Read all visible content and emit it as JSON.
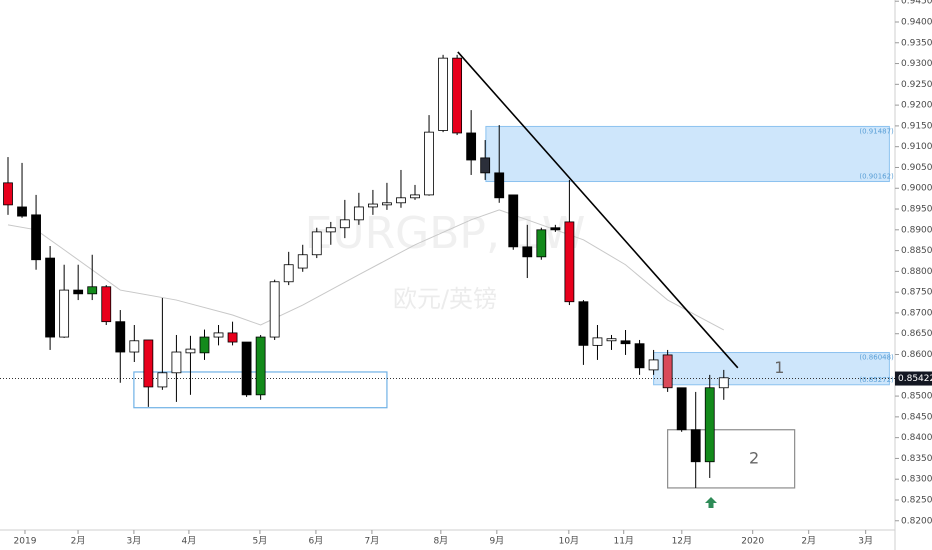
{
  "chart_data": {
    "type": "candlestick",
    "watermark": "EURGBP, 1W",
    "subtitle": "欧元/英镑",
    "x": [
      0,
      1,
      2,
      3,
      4,
      5,
      6,
      7,
      8,
      9,
      10,
      11,
      12,
      13,
      14,
      15,
      16,
      17,
      18,
      19,
      20,
      21,
      22,
      23,
      24,
      25,
      26,
      27,
      28,
      29,
      30,
      31,
      32,
      33,
      34,
      35,
      36,
      37,
      38,
      39,
      40,
      41,
      42,
      43,
      44,
      45,
      46,
      47,
      48,
      49,
      50,
      51
    ],
    "open": [
      0.9013,
      0.8955,
      0.8936,
      0.8832,
      0.8642,
      0.8755,
      0.8746,
      0.8763,
      0.8679,
      0.8606,
      0.8635,
      0.8522,
      0.8556,
      0.8604,
      0.8604,
      0.8642,
      0.8652,
      0.863,
      0.8503,
      0.8642,
      0.8775,
      0.8808,
      0.884,
      0.8895,
      0.8905,
      0.8924,
      0.8955,
      0.896,
      0.8965,
      0.8977,
      0.8984,
      0.9139,
      0.9313,
      0.9133,
      0.9073,
      0.9037,
      0.8984,
      0.8859,
      0.8835,
      0.8905,
      0.8919,
      0.8727,
      0.8622,
      0.8633,
      0.8633,
      0.8626,
      0.8563,
      0.8599,
      0.852,
      0.8419,
      0.8342,
      0.852
    ],
    "high": [
      0.9075,
      0.9061,
      0.8984,
      0.8861,
      0.8816,
      0.8816,
      0.884,
      0.8767,
      0.8707,
      0.8671,
      0.8635,
      0.8736,
      0.8647,
      0.8645,
      0.866,
      0.8671,
      0.8679,
      0.863,
      0.8647,
      0.878,
      0.8847,
      0.8864,
      0.8905,
      0.8919,
      0.8972,
      0.8989,
      0.8996,
      0.9013,
      0.9044,
      0.9008,
      0.9176,
      0.9321,
      0.9321,
      0.9188,
      0.9116,
      0.9152,
      0.8984,
      0.8912,
      0.8905,
      0.8912,
      0.902,
      0.8731,
      0.8671,
      0.8647,
      0.8659,
      0.8635,
      0.8611,
      0.8611,
      0.852,
      0.851,
      0.8551,
      0.8563
    ],
    "low": [
      0.8936,
      0.8929,
      0.8804,
      0.8611,
      0.864,
      0.8731,
      0.8731,
      0.8671,
      0.8532,
      0.8582,
      0.8474,
      0.8515,
      0.8486,
      0.8503,
      0.8587,
      0.8622,
      0.8622,
      0.8498,
      0.8491,
      0.8635,
      0.8767,
      0.8799,
      0.8832,
      0.8864,
      0.888,
      0.8912,
      0.8936,
      0.8948,
      0.8953,
      0.8972,
      0.8982,
      0.9135,
      0.9128,
      0.9032,
      0.902,
      0.8965,
      0.8852,
      0.8784,
      0.8828,
      0.8895,
      0.8719,
      0.8575,
      0.8587,
      0.8611,
      0.8599,
      0.8551,
      0.8551,
      0.851,
      0.8414,
      0.8279,
      0.8303,
      0.8491
    ],
    "close": [
      0.896,
      0.8933,
      0.8828,
      0.8642,
      0.8755,
      0.8746,
      0.8763,
      0.8679,
      0.8606,
      0.8633,
      0.8522,
      0.8556,
      0.8606,
      0.8613,
      0.8642,
      0.8652,
      0.863,
      0.8503,
      0.8642,
      0.8775,
      0.8816,
      0.884,
      0.8895,
      0.8905,
      0.8924,
      0.8955,
      0.8962,
      0.8965,
      0.8977,
      0.8984,
      0.9135,
      0.9313,
      0.9133,
      0.9068,
      0.9037,
      0.8977,
      0.8859,
      0.8835,
      0.89,
      0.89,
      0.8727,
      0.8622,
      0.864,
      0.8638,
      0.8626,
      0.8568,
      0.8587,
      0.852,
      0.8419,
      0.8342,
      0.852,
      0.8544
    ],
    "colors": [
      "#e8001c",
      "#000000",
      "#000000",
      "#000000",
      "#ffffff",
      "#000000",
      "#138a1b",
      "#e8001c",
      "#000000",
      "#ffffff",
      "#e8001c",
      "#ffffff",
      "#ffffff",
      "#ffffff",
      "#138a1b",
      "#ffffff",
      "#e8001c",
      "#000000",
      "#138a1b",
      "#ffffff",
      "#ffffff",
      "#ffffff",
      "#ffffff",
      "#ffffff",
      "#ffffff",
      "#ffffff",
      "#ffffff",
      "#ffffff",
      "#ffffff",
      "#ffffff",
      "#ffffff",
      "#ffffff",
      "#e8001c",
      "#000000",
      "#2b2f3a",
      "#000000",
      "#000000",
      "#000000",
      "#138a1b",
      "#000000",
      "#e8001c",
      "#000000",
      "#ffffff",
      "#ffffff",
      "#000000",
      "#000000",
      "#ffffff",
      "#d94a5a",
      "#000000",
      "#000000",
      "#138a1b",
      "#ffffff"
    ],
    "ma": {
      "color": "#c8c8c8",
      "x": [
        0,
        2,
        4,
        8,
        12,
        16,
        18,
        21,
        25,
        29,
        33,
        35,
        38,
        41,
        44,
        47,
        51
      ],
      "values": [
        0.8912,
        0.89,
        0.8852,
        0.8755,
        0.8731,
        0.8695,
        0.8671,
        0.8719,
        0.8792,
        0.8864,
        0.8924,
        0.8948,
        0.8912,
        0.8876,
        0.8816,
        0.8731,
        0.8659
      ]
    },
    "zones": [
      {
        "x": [
          34.05,
          62.8
        ],
        "bottom": {
          "value": 0.90162,
          "label": "(0.90162)"
        },
        "top": {
          "value": 0.91487,
          "label": "(0.91487)"
        }
      },
      {
        "x": [
          46.0,
          62.8
        ],
        "bottom": {
          "value": 0.85272,
          "label": "(0.85272)"
        },
        "top": {
          "value": 0.86048,
          "label": "(0.86048)"
        },
        "name": "1"
      }
    ],
    "boxes": [
      {
        "x": [
          8.97,
          27.0
        ],
        "y": [
          0.8472,
          0.8558
        ],
        "color": "#6fb1e6"
      },
      {
        "x": [
          47.0,
          56.05
        ],
        "y": [
          0.8279,
          0.8419
        ],
        "color": "#8c8c8c",
        "name": "2"
      }
    ],
    "trendline": {
      "x": [
        32.05,
        52.0
      ],
      "y": [
        0.9328,
        0.8568
      ]
    },
    "last_price": {
      "value": 0.85422,
      "label": "0.85422"
    },
    "xlim": [
      -0.57,
      63.2
    ],
    "ylim": [
      0.81778,
      0.94529
    ],
    "xticks": [
      {
        "value": 1.21,
        "label": "2019"
      },
      {
        "value": 4.99,
        "label": "2月"
      },
      {
        "value": 8.97,
        "label": "3月"
      },
      {
        "value": 12.89,
        "label": "4月"
      },
      {
        "value": 17.95,
        "label": "5月"
      },
      {
        "value": 21.94,
        "label": "6月"
      },
      {
        "value": 25.93,
        "label": "7月"
      },
      {
        "value": 30.84,
        "label": "8月"
      },
      {
        "value": 34.83,
        "label": "9月"
      },
      {
        "value": 39.96,
        "label": "10月"
      },
      {
        "value": 43.87,
        "label": "11月"
      },
      {
        "value": 48.01,
        "label": "12月"
      },
      {
        "value": 53.06,
        "label": "2020"
      },
      {
        "value": 57.05,
        "label": "2月"
      },
      {
        "value": 61.11,
        "label": "3月"
      }
    ],
    "yticks": [
      {
        "value": 0.82,
        "label": "0.82000"
      },
      {
        "value": 0.825,
        "label": "0.82500"
      },
      {
        "value": 0.83,
        "label": "0.83000"
      },
      {
        "value": 0.835,
        "label": "0.83500"
      },
      {
        "value": 0.84,
        "label": "0.84000"
      },
      {
        "value": 0.845,
        "label": "0.84500"
      },
      {
        "value": 0.85,
        "label": "0.85000"
      },
      {
        "value": 0.855,
        "label": "0.85500"
      },
      {
        "value": 0.86,
        "label": "0.86000"
      },
      {
        "value": 0.865,
        "label": "0.86500"
      },
      {
        "value": 0.87,
        "label": "0.87000"
      },
      {
        "value": 0.875,
        "label": "0.87500"
      },
      {
        "value": 0.88,
        "label": "0.88000"
      },
      {
        "value": 0.885,
        "label": "0.88500"
      },
      {
        "value": 0.89,
        "label": "0.89000"
      },
      {
        "value": 0.895,
        "label": "0.89500"
      },
      {
        "value": 0.9,
        "label": "0.90000"
      },
      {
        "value": 0.905,
        "label": "0.90500"
      },
      {
        "value": 0.91,
        "label": "0.91000"
      },
      {
        "value": 0.915,
        "label": "0.91500"
      },
      {
        "value": 0.92,
        "label": "0.92000"
      },
      {
        "value": 0.925,
        "label": "0.92500"
      },
      {
        "value": 0.93,
        "label": "0.93000"
      },
      {
        "value": 0.935,
        "label": "0.93500"
      },
      {
        "value": 0.94,
        "label": "0.94000"
      },
      {
        "value": 0.945,
        "label": "0.94500"
      }
    ]
  }
}
